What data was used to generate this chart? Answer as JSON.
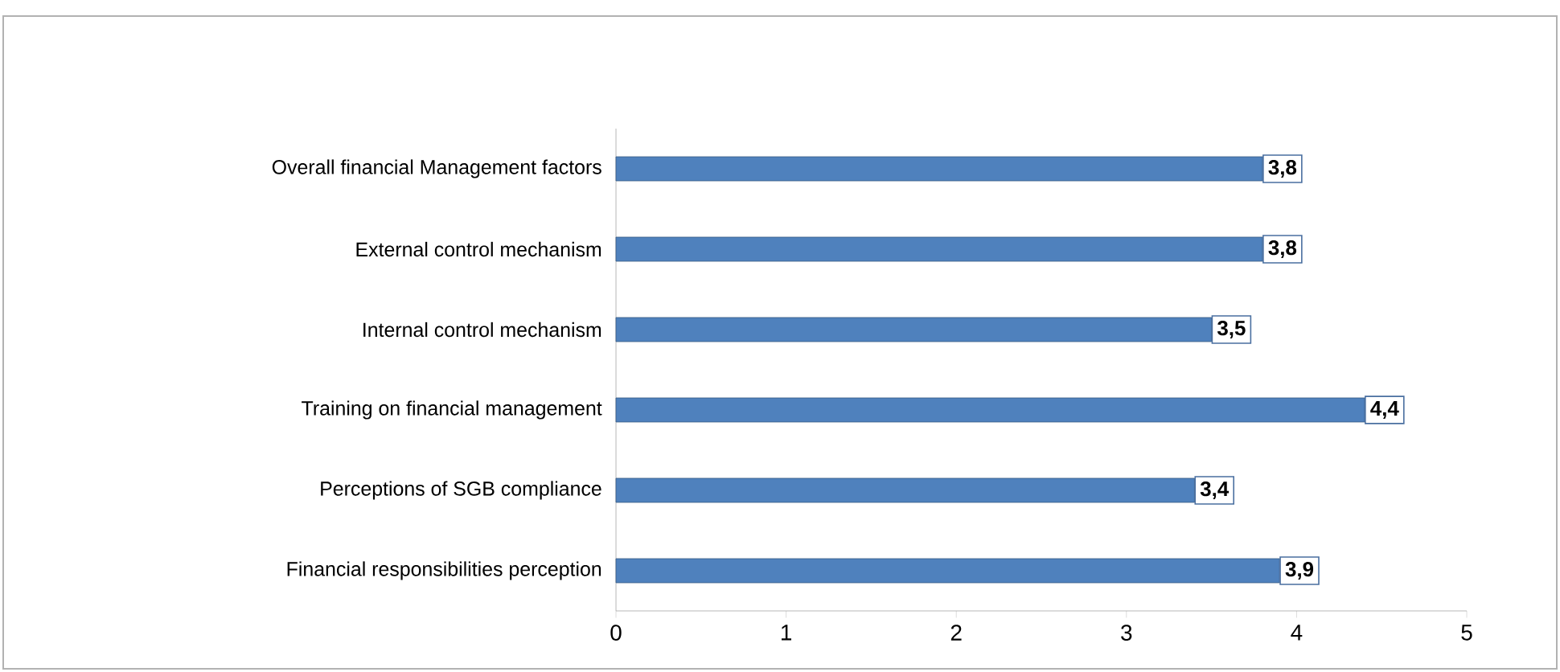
{
  "chart_data": {
    "type": "bar",
    "orientation": "horizontal",
    "categories": [
      "Overall financial Management factors",
      "External control mechanism",
      "Internal control mechanism",
      "Training on financial management",
      "Perceptions of SGB compliance",
      "Financial responsibilities perception"
    ],
    "values": [
      3.8,
      3.8,
      3.5,
      4.4,
      3.4,
      3.9
    ],
    "value_labels": [
      "3,8",
      "3,8",
      "3,5",
      "4,4",
      "3,4",
      "3,9"
    ],
    "color": "#4f81bd",
    "xlim": [
      0,
      5
    ],
    "xticks": [
      0,
      1,
      2,
      3,
      4,
      5
    ],
    "grid": false
  }
}
